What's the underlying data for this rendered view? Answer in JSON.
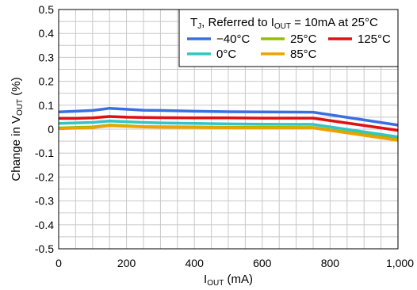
{
  "chart_data": {
    "type": "line",
    "title": "",
    "xlabel": {
      "base": "I",
      "sub": "OUT",
      "suffix": " (mA)"
    },
    "ylabel": {
      "prefix": "Change in V",
      "sub": "OUT",
      "suffix": " (%)"
    },
    "xlim": [
      0,
      1000
    ],
    "ylim": [
      -0.5,
      0.5
    ],
    "xticks": [
      0,
      200,
      400,
      600,
      800,
      1000
    ],
    "xtick_labels": [
      "0",
      "200",
      "400",
      "600",
      "800",
      "1,000"
    ],
    "yticks": [
      0.5,
      0.4,
      0.3,
      0.2,
      0.1,
      0,
      -0.1,
      -0.2,
      -0.3,
      -0.4,
      -0.5
    ],
    "ytick_labels": [
      "0.5",
      "0.4",
      "0.3",
      "0.2",
      "0.1",
      "0",
      "-0.1",
      "-0.2",
      "-0.3",
      "-0.4",
      "-0.5"
    ],
    "grid": true,
    "minor_x_step": 50,
    "minor_y_step": 0.05,
    "legend": {
      "placement": "top-right",
      "title": {
        "t": "T",
        "t_sub": "J",
        "mid": ", Referred to I",
        "i_sub": "OUT",
        "end": " = 10mA at 25°C"
      }
    },
    "series": [
      {
        "name": "−40°C",
        "color": "#3a6fe0",
        "x": [
          0,
          50,
          100,
          150,
          200,
          250,
          300,
          400,
          500,
          600,
          750,
          1000
        ],
        "y": [
          0.072,
          0.075,
          0.078,
          0.087,
          0.083,
          0.079,
          0.078,
          0.075,
          0.073,
          0.072,
          0.071,
          0.017
        ]
      },
      {
        "name": "0°C",
        "color": "#33c5c5",
        "x": [
          0,
          50,
          100,
          150,
          200,
          250,
          300,
          400,
          500,
          600,
          750,
          1000
        ],
        "y": [
          0.024,
          0.026,
          0.028,
          0.034,
          0.031,
          0.028,
          0.026,
          0.024,
          0.022,
          0.021,
          0.02,
          -0.032
        ]
      },
      {
        "name": "25°C",
        "color": "#8fbf00",
        "x": [
          0,
          50,
          100,
          150,
          200,
          250,
          300,
          400,
          500,
          600,
          750,
          1000
        ],
        "y": [
          0.005,
          0.007,
          0.009,
          0.017,
          0.014,
          0.011,
          0.01,
          0.009,
          0.008,
          0.008,
          0.007,
          -0.042
        ]
      },
      {
        "name": "85°C",
        "color": "#f0a000",
        "x": [
          0,
          50,
          100,
          150,
          200,
          250,
          300,
          400,
          500,
          600,
          750,
          1000
        ],
        "y": [
          0.002,
          0.004,
          0.006,
          0.015,
          0.012,
          0.009,
          0.008,
          0.007,
          0.006,
          0.005,
          0.005,
          -0.047
        ]
      },
      {
        "name": "125°C",
        "color": "#e01010",
        "x": [
          0,
          50,
          100,
          150,
          200,
          250,
          300,
          400,
          500,
          600,
          750,
          1000
        ],
        "y": [
          0.045,
          0.045,
          0.047,
          0.053,
          0.05,
          0.049,
          0.048,
          0.047,
          0.047,
          0.046,
          0.046,
          -0.005
        ]
      }
    ],
    "legend_order": [
      [
        0,
        2,
        4
      ],
      [
        1,
        3
      ]
    ]
  }
}
